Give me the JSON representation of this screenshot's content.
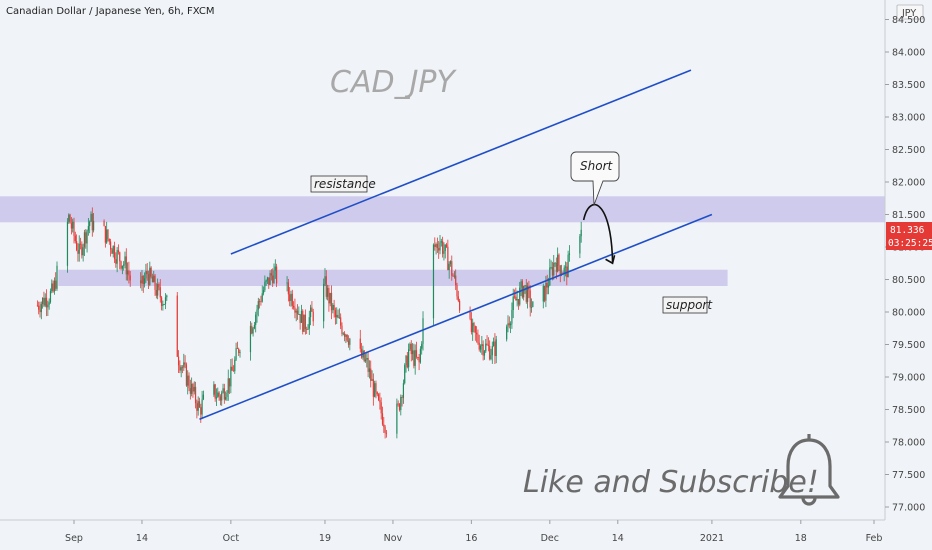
{
  "header": {
    "title": "Canadian Dollar / Japanese Yen, 6h, FXCM"
  },
  "currency_label": "JPY",
  "annotations": {
    "symbol": "CAD_JPY",
    "resistance": "resistance",
    "support": "support",
    "short": "Short",
    "cta": "Like and Subscribe!"
  },
  "price_tag": {
    "price": "81.336",
    "countdown": "03:25:25"
  },
  "colors": {
    "bull": "#1e8a5e",
    "bear": "#e53935",
    "zone": "#c9c3ea",
    "channel": "#1f4fc8",
    "tag": "#e53935"
  },
  "chart_data": {
    "type": "candlestick",
    "title": "Canadian Dollar / Japanese Yen, 6h, FXCM",
    "y_ticks": [
      "77.000",
      "77.500",
      "78.000",
      "78.500",
      "79.000",
      "79.500",
      "80.000",
      "80.500",
      "81.000",
      "81.500",
      "82.000",
      "82.500",
      "83.000",
      "83.500",
      "84.000",
      "84.500"
    ],
    "x_ticks": [
      {
        "label": "Sep",
        "date": "2020-09-01"
      },
      {
        "label": "14",
        "date": "2020-09-14"
      },
      {
        "label": "Oct",
        "date": "2020-10-01"
      },
      {
        "label": "19",
        "date": "2020-10-19"
      },
      {
        "label": "Nov",
        "date": "2020-11-01"
      },
      {
        "label": "16",
        "date": "2020-11-16"
      },
      {
        "label": "Dec",
        "date": "2020-12-01"
      },
      {
        "label": "14",
        "date": "2020-12-14"
      },
      {
        "label": "2021",
        "date": "2021-01-01"
      },
      {
        "label": "18",
        "date": "2021-01-18"
      },
      {
        "label": "Feb",
        "date": "2021-02-01"
      }
    ],
    "ylim": [
      76.8,
      84.8
    ],
    "close_path": [
      [
        "2020-08-25",
        80.1
      ],
      [
        "2020-08-28",
        80.3
      ],
      [
        "2020-08-31",
        81.45
      ],
      [
        "2020-09-02",
        80.9
      ],
      [
        "2020-09-04",
        81.4
      ],
      [
        "2020-09-07",
        81.2
      ],
      [
        "2020-09-09",
        80.9
      ],
      [
        "2020-09-11",
        80.7
      ],
      [
        "2020-09-13",
        80.2
      ],
      [
        "2020-09-15",
        80.6
      ],
      [
        "2020-09-17",
        80.3
      ],
      [
        "2020-09-19",
        80.1
      ],
      [
        "2020-09-21",
        79.3
      ],
      [
        "2020-09-23",
        78.9
      ],
      [
        "2020-09-25",
        78.5
      ],
      [
        "2020-09-27",
        78.8
      ],
      [
        "2020-09-29",
        78.7
      ],
      [
        "2020-10-01",
        79.0
      ],
      [
        "2020-10-03",
        79.6
      ],
      [
        "2020-10-05",
        79.8
      ],
      [
        "2020-10-07",
        80.3
      ],
      [
        "2020-10-09",
        80.6
      ],
      [
        "2020-10-11",
        80.4
      ],
      [
        "2020-10-13",
        80.2
      ],
      [
        "2020-10-15",
        79.8
      ],
      [
        "2020-10-17",
        80.0
      ],
      [
        "2020-10-19",
        80.4
      ],
      [
        "2020-10-21",
        79.9
      ],
      [
        "2020-10-23",
        79.7
      ],
      [
        "2020-10-25",
        79.4
      ],
      [
        "2020-10-27",
        79.2
      ],
      [
        "2020-10-29",
        78.6
      ],
      [
        "2020-10-31",
        78.2
      ],
      [
        "2020-11-02",
        78.5
      ],
      [
        "2020-11-04",
        79.4
      ],
      [
        "2020-11-06",
        79.2
      ],
      [
        "2020-11-08",
        80.9
      ],
      [
        "2020-11-10",
        81.1
      ],
      [
        "2020-11-12",
        80.7
      ],
      [
        "2020-11-14",
        80.1
      ],
      [
        "2020-11-16",
        79.7
      ],
      [
        "2020-11-18",
        79.5
      ],
      [
        "2020-11-20",
        79.4
      ],
      [
        "2020-11-22",
        79.6
      ],
      [
        "2020-11-24",
        80.1
      ],
      [
        "2020-11-26",
        80.4
      ],
      [
        "2020-11-28",
        80.0
      ],
      [
        "2020-11-30",
        80.3
      ],
      [
        "2020-12-02",
        80.8
      ],
      [
        "2020-12-04",
        80.6
      ],
      [
        "2020-12-06",
        81.1
      ],
      [
        "2020-12-07",
        81.34
      ]
    ],
    "resistance_zone": [
      81.38,
      81.78
    ],
    "support_zone": [
      80.4,
      80.65
    ],
    "channel_lower": [
      [
        "2020-09-25",
        78.35
      ],
      [
        "2021-01-01",
        81.5
      ]
    ],
    "channel_upper_parallel": true,
    "projection": [
      [
        "2020-12-09",
        81.6
      ],
      [
        "2020-12-13",
        80.75
      ]
    ],
    "last_price": 81.336
  }
}
